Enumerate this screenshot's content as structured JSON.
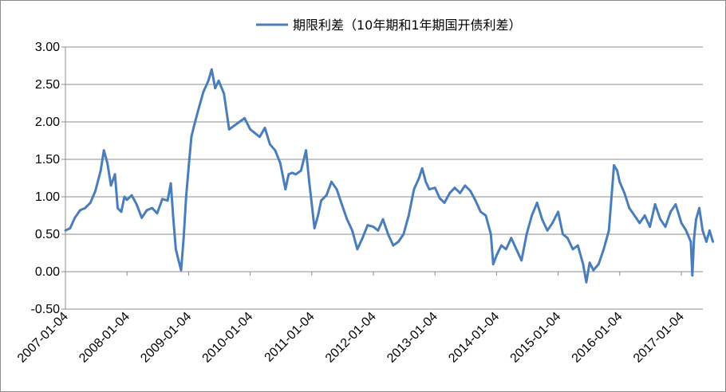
{
  "chart_data": {
    "type": "line",
    "title": "",
    "xlabel": "",
    "ylabel": "",
    "ylim": [
      -0.5,
      3.0
    ],
    "y_ticks": [
      "3.00",
      "2.50",
      "2.00",
      "1.50",
      "1.00",
      "0.50",
      "0.00",
      "-0.50"
    ],
    "x_ticks": [
      "2007-01-04",
      "2008-01-04",
      "2009-01-04",
      "2010-01-04",
      "2011-01-04",
      "2012-01-04",
      "2013-01-04",
      "2014-01-04",
      "2015-01-04",
      "2016-01-04",
      "2017-01-04"
    ],
    "grid": "horizontal",
    "legend_position": "top",
    "series": [
      {
        "name": "期限利差（10年期和1年期国开债利差）",
        "color": "#4a7ebb",
        "points": [
          [
            "2007-01-04",
            0.55
          ],
          [
            "2007-02-01",
            0.58
          ],
          [
            "2007-03-01",
            0.72
          ],
          [
            "2007-04-01",
            0.82
          ],
          [
            "2007-05-01",
            0.85
          ],
          [
            "2007-06-01",
            0.92
          ],
          [
            "2007-07-01",
            1.08
          ],
          [
            "2007-08-01",
            1.35
          ],
          [
            "2007-08-20",
            1.62
          ],
          [
            "2007-09-10",
            1.45
          ],
          [
            "2007-10-01",
            1.15
          ],
          [
            "2007-10-25",
            1.3
          ],
          [
            "2007-11-10",
            0.85
          ],
          [
            "2007-12-01",
            0.8
          ],
          [
            "2007-12-20",
            1.0
          ],
          [
            "2008-01-04",
            0.96
          ],
          [
            "2008-02-01",
            1.02
          ],
          [
            "2008-03-01",
            0.9
          ],
          [
            "2008-04-01",
            0.72
          ],
          [
            "2008-05-01",
            0.82
          ],
          [
            "2008-06-01",
            0.85
          ],
          [
            "2008-07-01",
            0.78
          ],
          [
            "2008-08-01",
            0.97
          ],
          [
            "2008-09-01",
            0.95
          ],
          [
            "2008-09-20",
            1.18
          ],
          [
            "2008-10-05",
            0.7
          ],
          [
            "2008-10-20",
            0.3
          ],
          [
            "2008-11-05",
            0.15
          ],
          [
            "2008-11-20",
            0.02
          ],
          [
            "2008-12-05",
            0.45
          ],
          [
            "2008-12-20",
            1.0
          ],
          [
            "2009-01-04",
            1.4
          ],
          [
            "2009-01-20",
            1.8
          ],
          [
            "2009-02-05",
            1.95
          ],
          [
            "2009-03-01",
            2.15
          ],
          [
            "2009-04-01",
            2.4
          ],
          [
            "2009-05-01",
            2.55
          ],
          [
            "2009-05-20",
            2.7
          ],
          [
            "2009-06-10",
            2.45
          ],
          [
            "2009-07-01",
            2.55
          ],
          [
            "2009-08-01",
            2.38
          ],
          [
            "2009-09-01",
            1.9
          ],
          [
            "2009-10-01",
            1.95
          ],
          [
            "2009-11-01",
            2.0
          ],
          [
            "2009-12-01",
            2.05
          ],
          [
            "2010-01-04",
            1.9
          ],
          [
            "2010-02-01",
            1.85
          ],
          [
            "2010-03-01",
            1.8
          ],
          [
            "2010-04-01",
            1.92
          ],
          [
            "2010-05-01",
            1.7
          ],
          [
            "2010-06-01",
            1.62
          ],
          [
            "2010-07-01",
            1.45
          ],
          [
            "2010-08-01",
            1.1
          ],
          [
            "2010-08-20",
            1.3
          ],
          [
            "2010-09-10",
            1.32
          ],
          [
            "2010-10-01",
            1.3
          ],
          [
            "2010-11-01",
            1.35
          ],
          [
            "2010-12-01",
            1.62
          ],
          [
            "2010-12-20",
            1.2
          ],
          [
            "2011-01-04",
            0.9
          ],
          [
            "2011-01-20",
            0.58
          ],
          [
            "2011-02-10",
            0.75
          ],
          [
            "2011-03-01",
            0.95
          ],
          [
            "2011-04-01",
            1.02
          ],
          [
            "2011-05-01",
            1.2
          ],
          [
            "2011-06-01",
            1.1
          ],
          [
            "2011-07-01",
            0.9
          ],
          [
            "2011-08-01",
            0.7
          ],
          [
            "2011-09-01",
            0.55
          ],
          [
            "2011-10-01",
            0.3
          ],
          [
            "2011-11-01",
            0.45
          ],
          [
            "2011-12-01",
            0.62
          ],
          [
            "2012-01-04",
            0.6
          ],
          [
            "2012-02-01",
            0.55
          ],
          [
            "2012-03-01",
            0.7
          ],
          [
            "2012-04-01",
            0.5
          ],
          [
            "2012-05-01",
            0.35
          ],
          [
            "2012-06-01",
            0.4
          ],
          [
            "2012-07-01",
            0.5
          ],
          [
            "2012-08-01",
            0.75
          ],
          [
            "2012-09-01",
            1.1
          ],
          [
            "2012-10-01",
            1.25
          ],
          [
            "2012-10-20",
            1.38
          ],
          [
            "2012-11-10",
            1.2
          ],
          [
            "2012-12-01",
            1.1
          ],
          [
            "2013-01-04",
            1.12
          ],
          [
            "2013-02-01",
            0.98
          ],
          [
            "2013-03-01",
            0.92
          ],
          [
            "2013-04-01",
            1.05
          ],
          [
            "2013-05-01",
            1.12
          ],
          [
            "2013-06-01",
            1.05
          ],
          [
            "2013-07-01",
            1.15
          ],
          [
            "2013-08-01",
            1.08
          ],
          [
            "2013-09-01",
            0.95
          ],
          [
            "2013-10-01",
            0.8
          ],
          [
            "2013-11-01",
            0.75
          ],
          [
            "2013-12-01",
            0.5
          ],
          [
            "2013-12-15",
            0.1
          ],
          [
            "2014-01-04",
            0.22
          ],
          [
            "2014-02-01",
            0.35
          ],
          [
            "2014-03-01",
            0.3
          ],
          [
            "2014-04-01",
            0.45
          ],
          [
            "2014-05-01",
            0.3
          ],
          [
            "2014-06-01",
            0.15
          ],
          [
            "2014-07-01",
            0.5
          ],
          [
            "2014-08-01",
            0.75
          ],
          [
            "2014-09-01",
            0.92
          ],
          [
            "2014-10-01",
            0.7
          ],
          [
            "2014-11-01",
            0.55
          ],
          [
            "2014-12-01",
            0.65
          ],
          [
            "2015-01-04",
            0.8
          ],
          [
            "2015-02-01",
            0.5
          ],
          [
            "2015-03-01",
            0.45
          ],
          [
            "2015-04-01",
            0.3
          ],
          [
            "2015-05-01",
            0.35
          ],
          [
            "2015-06-01",
            0.1
          ],
          [
            "2015-06-20",
            -0.14
          ],
          [
            "2015-07-10",
            0.12
          ],
          [
            "2015-08-01",
            0.02
          ],
          [
            "2015-09-01",
            0.1
          ],
          [
            "2015-10-01",
            0.3
          ],
          [
            "2015-11-01",
            0.55
          ],
          [
            "2015-12-01",
            1.42
          ],
          [
            "2015-12-20",
            1.35
          ],
          [
            "2016-01-04",
            1.2
          ],
          [
            "2016-02-01",
            1.05
          ],
          [
            "2016-03-01",
            0.85
          ],
          [
            "2016-04-01",
            0.75
          ],
          [
            "2016-05-01",
            0.65
          ],
          [
            "2016-06-01",
            0.75
          ],
          [
            "2016-07-01",
            0.6
          ],
          [
            "2016-08-01",
            0.9
          ],
          [
            "2016-09-01",
            0.7
          ],
          [
            "2016-10-01",
            0.6
          ],
          [
            "2016-11-01",
            0.8
          ],
          [
            "2016-12-01",
            0.9
          ],
          [
            "2017-01-04",
            0.65
          ],
          [
            "2017-02-01",
            0.55
          ],
          [
            "2017-03-01",
            0.4
          ],
          [
            "2017-03-10",
            -0.05
          ],
          [
            "2017-03-20",
            0.45
          ],
          [
            "2017-04-01",
            0.7
          ],
          [
            "2017-04-20",
            0.85
          ],
          [
            "2017-05-10",
            0.55
          ],
          [
            "2017-06-01",
            0.4
          ],
          [
            "2017-06-20",
            0.55
          ],
          [
            "2017-07-10",
            0.4
          ]
        ]
      }
    ]
  }
}
